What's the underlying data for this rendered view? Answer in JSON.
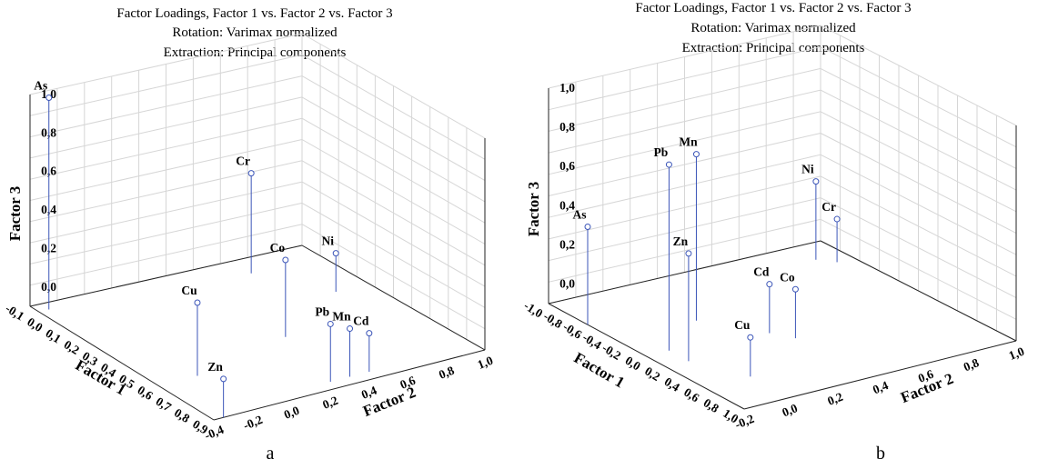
{
  "chart_data": [
    {
      "type": "scatter3d",
      "panel_label": "a",
      "title": "Factor Loadings, Factor 1 vs. Factor 2 vs. Factor 3",
      "subtitle_1": "Rotation: Varimax normalized",
      "subtitle_2": "Extraction: Principal components",
      "axes": {
        "x": {
          "label": "Factor 1",
          "ticks": [
            "-0,1",
            "0,0",
            "0,1",
            "0,2",
            "0,3",
            "0,4",
            "0,5",
            "0,6",
            "0,7",
            "0,8",
            "0,9"
          ],
          "range": [
            -0.1,
            0.9
          ]
        },
        "y": {
          "label": "Factor 2",
          "ticks": [
            "-0,4",
            "-0,2",
            "0,0",
            "0,2",
            "0,4",
            "0,6",
            "0,8",
            "1,0"
          ],
          "range": [
            -0.4,
            1.0
          ]
        },
        "z": {
          "label": "Factor 3",
          "ticks": [
            "0,0",
            "0,2",
            "0,4",
            "0,6",
            "0,8",
            "1,0"
          ],
          "range": [
            -0.1,
            1.0
          ]
        }
      },
      "grid": true,
      "points": [
        {
          "label": "As",
          "f1": -0.05,
          "f2": -0.35,
          "f3": 1.0
        },
        {
          "label": "Cu",
          "f1": 0.6,
          "f2": -0.2,
          "f3": 0.28
        },
        {
          "label": "Cr",
          "f1": 0.05,
          "f2": 0.6,
          "f3": 0.42
        },
        {
          "label": "Ni",
          "f1": 0.3,
          "f2": 0.8,
          "f3": 0.1
        },
        {
          "label": "Co",
          "f1": 0.5,
          "f2": 0.35,
          "f3": 0.3
        },
        {
          "label": "Pb",
          "f1": 0.85,
          "f2": 0.25,
          "f3": 0.2
        },
        {
          "label": "Mn",
          "f1": 0.85,
          "f2": 0.35,
          "f3": 0.15
        },
        {
          "label": "Cd",
          "f1": 0.85,
          "f2": 0.45,
          "f3": 0.1
        },
        {
          "label": "Zn",
          "f1": 0.9,
          "f2": -0.35,
          "f3": 0.1
        }
      ]
    },
    {
      "type": "scatter3d",
      "panel_label": "b",
      "title": "Factor Loadings, Factor 1 vs. Factor 2 vs. Factor 3",
      "subtitle_1": "Rotation: Varimax normalized",
      "subtitle_2": "Extraction: Principal components",
      "axes": {
        "x": {
          "label": "Factor 1",
          "ticks": [
            "-1,0",
            "-0,8",
            "-0,6",
            "-0,4",
            "-0,2",
            "0,0",
            "0,2",
            "0,4",
            "0,6",
            "0,8",
            "1,0"
          ],
          "range": [
            -1.0,
            1.0
          ]
        },
        "y": {
          "label": "Factor 2",
          "ticks": [
            "-0,2",
            "0,0",
            "0,2",
            "0,4",
            "0,6",
            "0,8",
            "1,0"
          ],
          "range": [
            -0.2,
            1.0
          ]
        },
        "z": {
          "label": "Factor 3",
          "ticks": [
            "0,0",
            "0,2",
            "0,4",
            "0,6",
            "0,8",
            "1,0"
          ],
          "range": [
            -0.1,
            1.0
          ]
        }
      },
      "grid": true,
      "points": [
        {
          "label": "Pb",
          "f1": 0.0,
          "f2": -0.1,
          "f3": 0.85
        },
        {
          "label": "Mn",
          "f1": -0.3,
          "f2": 0.15,
          "f3": 0.75
        },
        {
          "label": "As",
          "f1": -0.6,
          "f2": -0.2,
          "f3": 0.4
        },
        {
          "label": "Zn",
          "f1": 0.2,
          "f2": -0.1,
          "f3": 0.45
        },
        {
          "label": "Ni",
          "f1": -0.7,
          "f2": 0.85,
          "f3": 0.3
        },
        {
          "label": "Cr",
          "f1": -0.6,
          "f2": 0.9,
          "f3": 0.12
        },
        {
          "label": "Cd",
          "f1": 0.1,
          "f2": 0.3,
          "f3": 0.15
        },
        {
          "label": "Co",
          "f1": 0.25,
          "f2": 0.35,
          "f3": 0.15
        },
        {
          "label": "Cu",
          "f1": 0.6,
          "f2": 0.0,
          "f3": 0.1
        }
      ]
    }
  ]
}
